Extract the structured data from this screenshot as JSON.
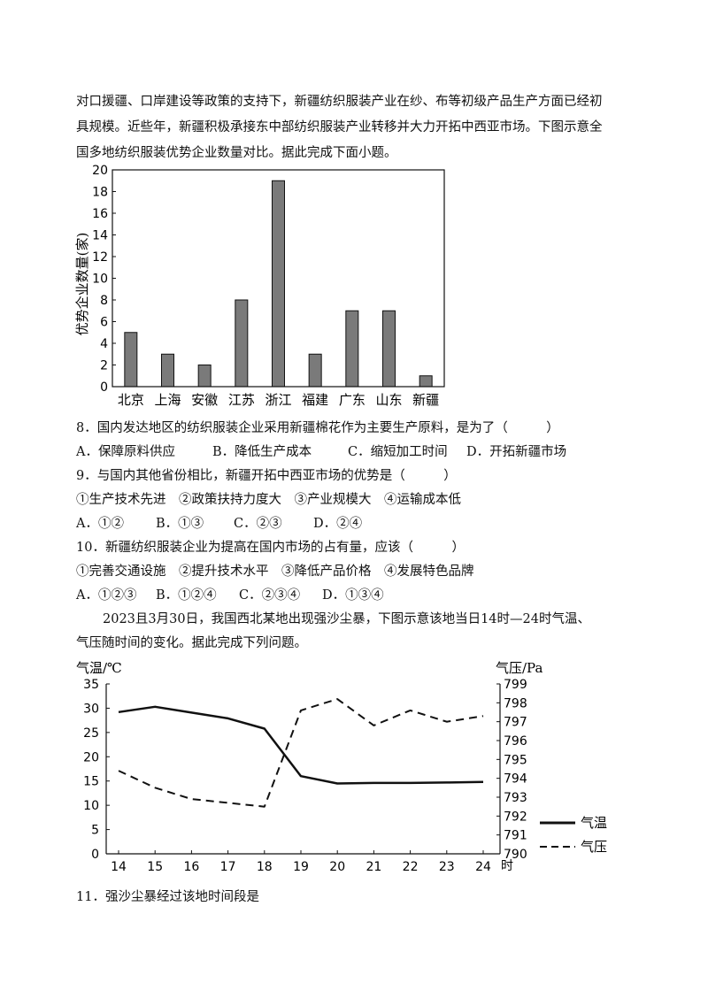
{
  "intro": {
    "lines": [
      "对口援疆、口岸建设等政策的支持下，新疆纺织服装产业在纱、布等初级产品生产方面已经初",
      "具规模。近些年，新疆积极承接东中部纺织服装产业转移并大力开拓中西亚市场。下图示意全",
      "国多地纺织服装优势企业数量对比。据此完成下面小题。"
    ]
  },
  "questions": [
    {
      "stem": "8．国内发达地区的纺织服装企业采用新疆棉花作为主要生产原料，是为了（　　　）",
      "options": [
        "A．保障原料供应",
        "B．降低生产成本",
        "C．缩短加工时间",
        "D．开拓新疆市场"
      ]
    },
    {
      "stem": "9．与国内其他省份相比，新疆开拓中西亚市场的优势是（　　　）",
      "items": "①生产技术先进　②政策扶持力度大　③产业规模大　④运输成本低",
      "options": [
        "A．①②",
        "B．①③",
        "C．②③",
        "D．②④"
      ]
    },
    {
      "stem": "10．新疆纺织服装企业为提高在国内市场的占有量，应该（　　　）",
      "items": "①完善交通设施　②提升技术水平　③降低产品价格　④发展特色品牌",
      "options": [
        "A．①②③",
        "B．①②④",
        "C．②③④",
        "D．①③④"
      ]
    }
  ],
  "intro2": {
    "lines": [
      "2023且3月30日，我国西北某地出现强沙尘暴，下图示意该地当日14时—24时气温、",
      "气压随时间的变化。据此完成下列问题。"
    ]
  },
  "q11": "11．强沙尘暴经过该地时间段是",
  "chart_data": [
    {
      "type": "bar",
      "ylabel": "优势企业数量(家)",
      "categories": [
        "北京",
        "上海",
        "安徽",
        "江苏",
        "浙江",
        "福建",
        "广东",
        "山东",
        "新疆"
      ],
      "values": [
        5,
        3,
        2,
        8,
        19,
        3,
        7,
        7,
        1
      ],
      "ylim": [
        0,
        20
      ],
      "yticks": [
        "0",
        "2",
        "4",
        "6",
        "8",
        "10",
        "12",
        "14",
        "16",
        "18",
        "20"
      ],
      "bar_color": "#7a7a7a"
    },
    {
      "type": "line",
      "ylabel_left": "气温/℃",
      "ylabel_right": "气压/Pa",
      "xlabel_unit": "时",
      "x": [
        14,
        15,
        16,
        17,
        18,
        19,
        20,
        21,
        22,
        23,
        24
      ],
      "xticks": [
        "14",
        "15",
        "16",
        "17",
        "18",
        "19",
        "20",
        "21",
        "22",
        "23",
        "24"
      ],
      "yticks_left": [
        "0",
        "5",
        "10",
        "15",
        "20",
        "25",
        "30",
        "35"
      ],
      "yticks_right": [
        "790",
        "791",
        "792",
        "793",
        "794",
        "795",
        "796",
        "797",
        "798",
        "799"
      ],
      "ylim_left": [
        0,
        35
      ],
      "ylim_right": [
        790,
        799
      ],
      "series": [
        {
          "name": "气温",
          "axis": "left",
          "style": "solid",
          "values": [
            29.2,
            30.3,
            29.1,
            27.9,
            25.8,
            16.0,
            14.5,
            14.6,
            14.6,
            14.7,
            14.8
          ]
        },
        {
          "name": "气压",
          "axis": "right",
          "style": "dashed",
          "values": [
            794.4,
            793.5,
            792.9,
            792.7,
            792.5,
            797.6,
            798.2,
            796.8,
            797.6,
            797.0,
            797.3
          ]
        }
      ]
    }
  ]
}
